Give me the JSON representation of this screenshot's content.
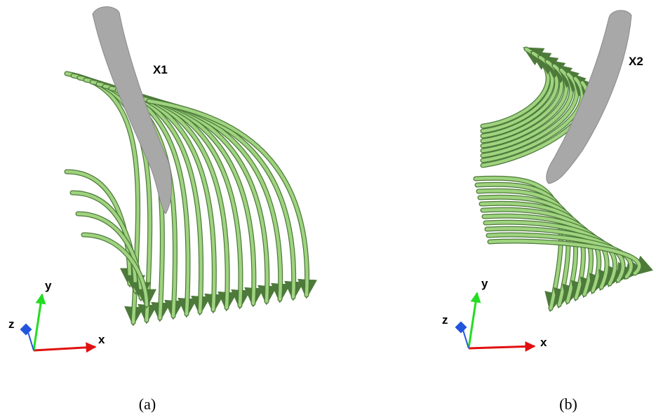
{
  "panels": [
    {
      "label": "X1",
      "axes": {
        "x": "x",
        "y": "y",
        "z": "z"
      },
      "caption": "(a)"
    },
    {
      "label": "X2",
      "axes": {
        "x": "x",
        "y": "y",
        "z": "z"
      },
      "caption": "(b)"
    }
  ]
}
